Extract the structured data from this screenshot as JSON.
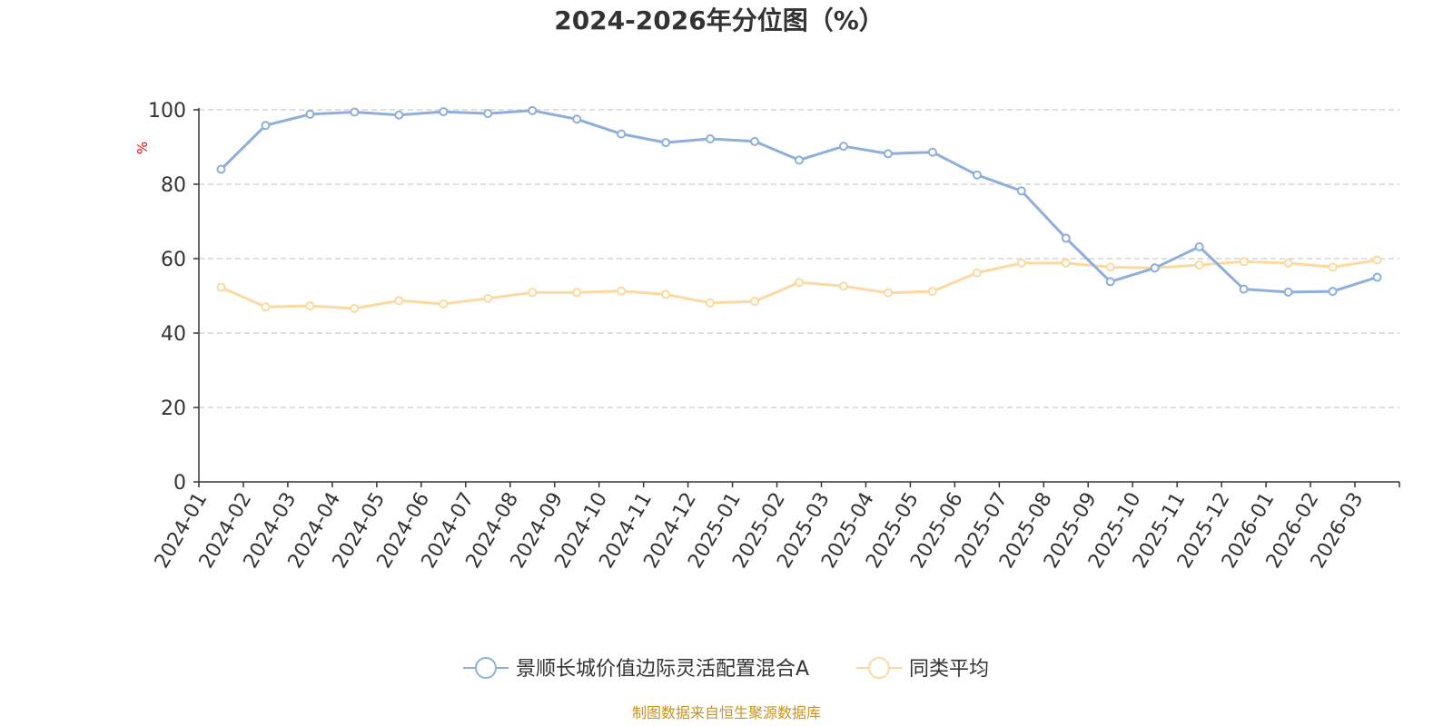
{
  "chart_data": {
    "type": "line",
    "title": "2024-2026年分位图（%）",
    "xlabel": "",
    "ylabel": "%",
    "ylim": [
      0,
      100
    ],
    "yticks": [
      0,
      20,
      40,
      60,
      80,
      100
    ],
    "grid": true,
    "legend_position": "bottom",
    "categories": [
      "2024-01",
      "2024-02",
      "2024-03",
      "2024-04",
      "2024-05",
      "2024-06",
      "2024-07",
      "2024-08",
      "2024-09",
      "2024-10",
      "2024-11",
      "2024-12",
      "2025-01",
      "2025-02",
      "2025-03",
      "2025-04",
      "2025-05",
      "2025-06",
      "2025-07",
      "2025-08",
      "2025-09",
      "2025-10",
      "2025-11",
      "2025-12",
      "2026-01",
      "2026-02",
      "2026-03"
    ],
    "series": [
      {
        "name": "景顺长城价值边际灵活配置混合A",
        "color": "#8eaedb",
        "values": [
          84.0,
          95.8,
          98.8,
          99.4,
          98.6,
          99.5,
          99.0,
          99.8,
          97.5,
          93.5,
          91.2,
          92.2,
          91.5,
          86.5,
          90.2,
          88.2,
          88.6,
          82.5,
          78.2,
          65.5,
          53.8,
          57.5,
          63.2,
          51.8,
          51.0,
          51.2,
          55.0
        ]
      },
      {
        "name": "同类平均",
        "color": "#fdd9a0",
        "values": [
          52.3,
          47.0,
          47.3,
          46.6,
          48.7,
          47.8,
          49.3,
          50.9,
          50.9,
          51.3,
          50.4,
          48.1,
          48.5,
          53.6,
          52.6,
          50.8,
          51.2,
          56.2,
          58.8,
          58.8,
          57.7,
          57.5,
          58.3,
          59.2,
          58.8,
          57.7,
          59.6
        ]
      }
    ],
    "source": "制图数据来自恒生聚源数据库",
    "source_color": "#c8941e",
    "axis_color": "#333333",
    "grid_color": "#cccccc",
    "ylabel_color": "#ff0000"
  }
}
